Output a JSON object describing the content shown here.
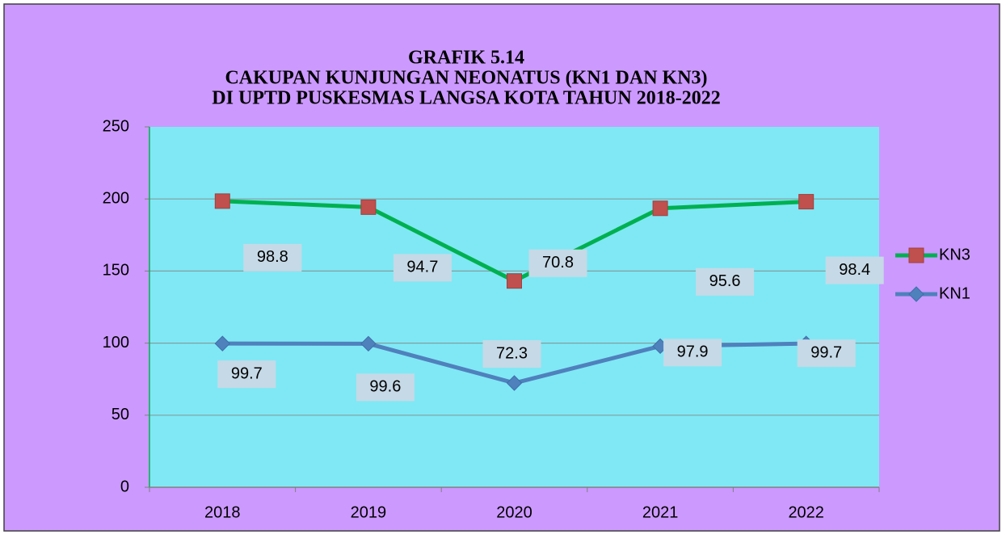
{
  "chart_data": {
    "type": "line",
    "stacked": true,
    "title_lines": [
      "GRAFIK 5.14",
      "CAKUPAN KUNJUNGAN NEONATUS (KN1 DAN KN3)",
      "DI UPTD PUSKESMAS LANGSA KOTA TAHUN 2018-2022"
    ],
    "categories": [
      "2018",
      "2019",
      "2020",
      "2021",
      "2022"
    ],
    "series": [
      {
        "name": "KN1",
        "color": "#4f81bd",
        "marker": "diamond",
        "values": [
          99.7,
          99.6,
          72.3,
          97.9,
          99.7
        ]
      },
      {
        "name": "KN3",
        "color": "#00b050",
        "marker_color": "#c0504d",
        "marker": "square",
        "values": [
          98.8,
          94.7,
          70.8,
          95.6,
          98.4
        ]
      }
    ],
    "ylim": [
      0,
      250
    ],
    "yticks": [
      0,
      50,
      100,
      150,
      200,
      250
    ],
    "grid": true,
    "legend": "right"
  }
}
